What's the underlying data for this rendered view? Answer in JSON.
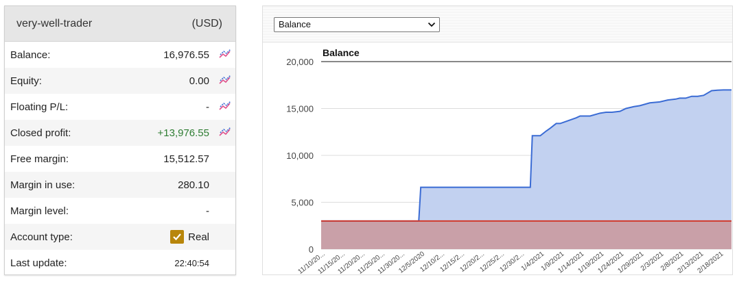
{
  "account": {
    "name": "very-well-trader",
    "currency": "(USD)",
    "rows": [
      {
        "label": "Balance:",
        "value": "16,976.55"
      },
      {
        "label": "Equity:",
        "value": "0.00"
      },
      {
        "label": "Floating P/L:",
        "value": "-"
      },
      {
        "label": "Closed profit:",
        "value": "+13,976.55"
      },
      {
        "label": "Free margin:",
        "value": "15,512.57"
      },
      {
        "label": "Margin in use:",
        "value": "280.10"
      },
      {
        "label": "Margin level:",
        "value": "-"
      },
      {
        "label": "Account type:",
        "value": "Real"
      },
      {
        "label": "Last update:",
        "value": "22:40:54"
      }
    ]
  },
  "colors": {
    "balance_line": "#3a6bd4",
    "balance_fill": "#c2d1f0",
    "deposit_line": "#d0392b",
    "deposit_fill": "#c9a0a8",
    "positive": "#2e7d32",
    "checkbox": "#b8860b"
  },
  "icons": {
    "chart_link": "chart-pencil-icon",
    "dropdown": "chevron-down-icon",
    "checkbox": "checkmark-icon"
  },
  "selector": {
    "selected": "Balance"
  },
  "chart_data": {
    "type": "area",
    "title": "Balance",
    "xlabel": "",
    "ylabel": "",
    "ylim": [
      0,
      20000
    ],
    "yticks": [
      "20,000",
      "15,000",
      "10,000",
      "5,000",
      "0"
    ],
    "grid": true,
    "categories": [
      "11/10/20...",
      "11/15/20...",
      "11/20/20...",
      "11/25/20...",
      "11/30/20...",
      "12/5/2020",
      "12/10/2...",
      "12/15/2...",
      "12/20/2...",
      "12/25/2...",
      "12/30/2...",
      "1/4/2021",
      "1/9/2021",
      "1/14/2021",
      "1/19/2021",
      "1/24/2021",
      "1/29/2021",
      "2/3/2021",
      "2/8/2021",
      "2/13/2021",
      "2/18/2021"
    ],
    "series": [
      {
        "x": [
          0,
          1,
          2,
          3,
          4,
          4.9,
          5,
          6,
          7,
          8,
          9,
          10,
          10.5,
          10.6,
          11,
          11.3,
          11.5,
          11.8,
          12,
          12.4,
          12.8,
          13,
          13.5,
          14,
          14.3,
          14.6,
          15,
          15.3,
          15.7,
          16,
          16.5,
          17,
          17.4,
          17.8,
          18,
          18.3,
          18.6,
          18.9,
          19.2,
          19.6,
          19.9,
          20.2,
          20.6
        ],
        "values": [
          3000,
          3000,
          3000,
          3000,
          3000,
          3000,
          6600,
          6600,
          6600,
          6600,
          6600,
          6600,
          6600,
          12100,
          12100,
          12600,
          12900,
          13400,
          13400,
          13700,
          14000,
          14200,
          14200,
          14500,
          14600,
          14600,
          14700,
          15000,
          15200,
          15300,
          15600,
          15700,
          15900,
          16000,
          16100,
          16100,
          16300,
          16300,
          16400,
          16900,
          16950,
          16976,
          16976
        ]
      },
      {
        "x": [
          0,
          20.6
        ],
        "values": [
          3000,
          3000
        ]
      }
    ]
  }
}
